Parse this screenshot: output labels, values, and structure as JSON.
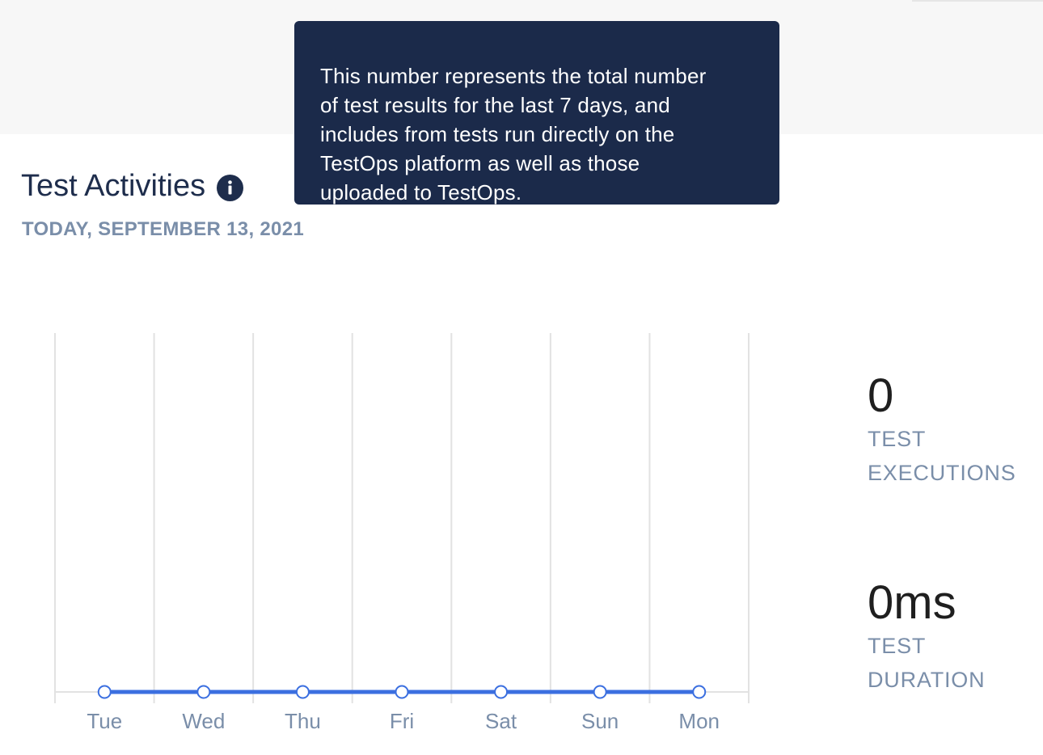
{
  "tooltip": {
    "lines": [
      "This number represents the total number",
      "of test results for the last 7 days, and",
      "includes from tests run directly on the",
      "TestOps platform as well as those",
      "uploaded to TestOps."
    ]
  },
  "header": {
    "title": "Test Activities",
    "date": "TODAY, SEPTEMBER 13, 2021"
  },
  "stats": {
    "executions": {
      "value": "0",
      "label": "TEST EXECUTIONS"
    },
    "duration": {
      "value": "0ms",
      "label": "TEST DURATION"
    }
  },
  "colors": {
    "accent": "#3b6fe0",
    "tooltip_bg": "#1b2a4a",
    "label": "#7a8ea9",
    "title": "#1e2d4c"
  },
  "icons": {
    "info": "info-icon"
  },
  "chart_data": {
    "type": "line",
    "categories": [
      "Tue",
      "Wed",
      "Thu",
      "Fri",
      "Sat",
      "Sun",
      "Mon"
    ],
    "series": [
      {
        "values": [
          0,
          0,
          0,
          0,
          0,
          0,
          0
        ]
      }
    ],
    "grid": "vertical"
  }
}
